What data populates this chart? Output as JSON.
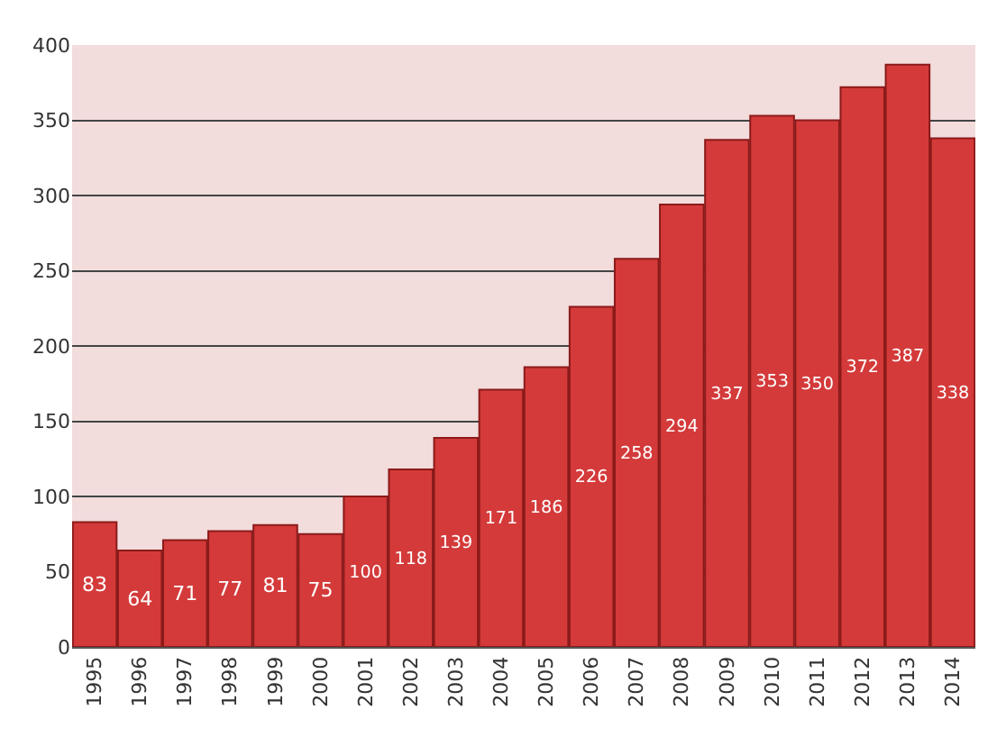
{
  "chart_data": {
    "type": "bar",
    "categories": [
      "1995",
      "1996",
      "1997",
      "1998",
      "1999",
      "2000",
      "2001",
      "2002",
      "2003",
      "2004",
      "2005",
      "2006",
      "2007",
      "2008",
      "2009",
      "2010",
      "2011",
      "2012",
      "2013",
      "2014"
    ],
    "values": [
      83,
      64,
      71,
      77,
      81,
      75,
      100,
      118,
      139,
      171,
      186,
      226,
      258,
      294,
      337,
      353,
      350,
      372,
      387,
      338
    ],
    "color": "#d43a3a",
    "ylim": [
      0,
      400
    ],
    "yticks": [
      0,
      50,
      100,
      150,
      200,
      250,
      300,
      350,
      400
    ],
    "grid": "y",
    "data_labels": true
  }
}
